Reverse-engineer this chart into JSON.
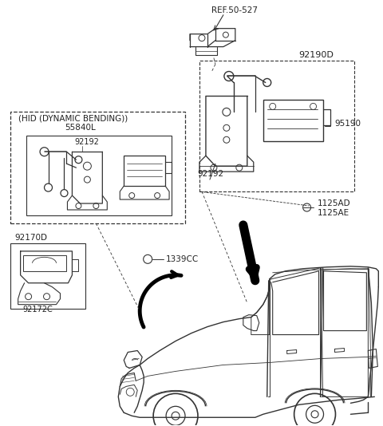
{
  "bg_color": "#ffffff",
  "line_color": "#333333",
  "text_color": "#222222",
  "fig_width": 4.8,
  "fig_height": 5.34,
  "dpi": 100,
  "labels": {
    "ref_50_527": "REF.50-527",
    "92190D": "92190D",
    "hid_label": "(HID (DYNAMIC BENDING))",
    "55840L": "55840L",
    "92192_left": "92192",
    "92192_right": "92192",
    "95190": "95190",
    "1125AD": "1125AD",
    "1125AE": "1125AE",
    "92170D": "92170D",
    "1339CC": "1339CC",
    "92172C": "92172C"
  }
}
